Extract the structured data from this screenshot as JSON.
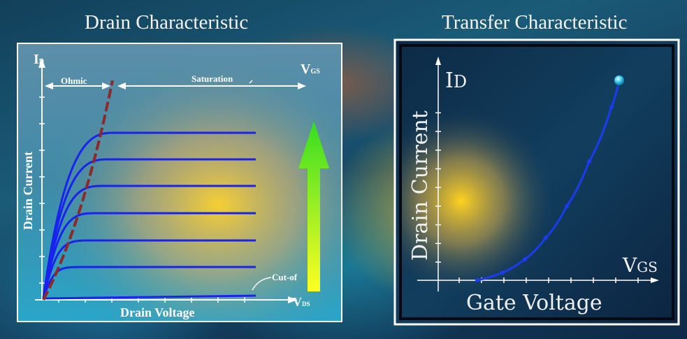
{
  "titles": {
    "drain": "Drain Characteristic",
    "transfer": "Transfer Characteristic"
  },
  "drain_panel": {
    "y_axis_symbol": "I",
    "y_axis_sub": "D",
    "y_label": "Drain Current",
    "x_label": "Drain Voltage",
    "x_axis_symbol": "V",
    "x_axis_sub": "DS",
    "vgs_symbol": "V",
    "vgs_sub": "GS",
    "ohmic": "Ohmic",
    "saturation": "Saturation",
    "cutoff": "Cut-of",
    "arrow_color": "#44dd22",
    "curve_color": "#1a22ee",
    "boundary_color": "#8b2a2a",
    "curve_count": 6
  },
  "transfer_panel": {
    "y_axis_symbol": "I",
    "y_axis_sub": "D",
    "y_label": "Drain Current",
    "x_axis_symbol": "V",
    "x_axis_sub": "GS",
    "x_label": "Gate Voltage",
    "curve_color": "#1a3cf0"
  }
}
